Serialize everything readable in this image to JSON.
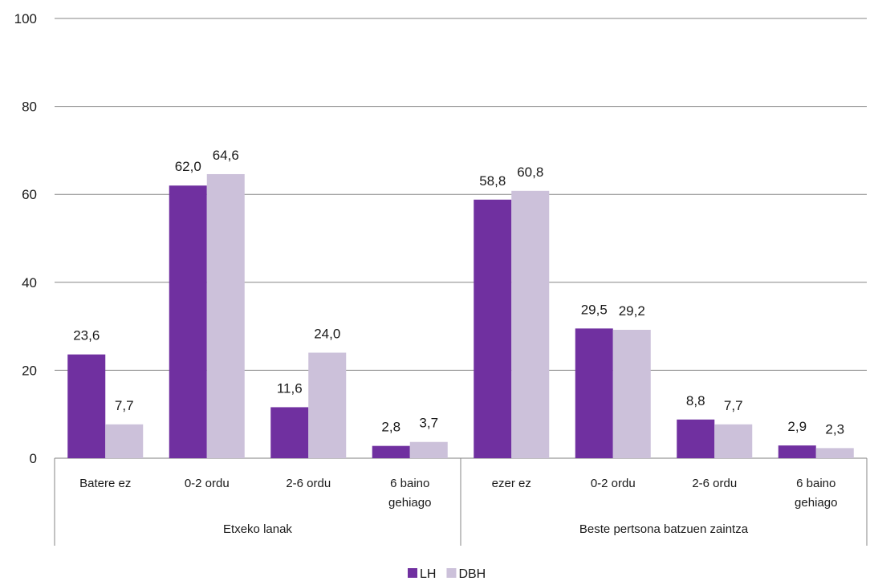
{
  "chart_data": {
    "type": "bar",
    "title": "",
    "xlabel": "",
    "ylabel": "",
    "ylim": [
      0,
      100
    ],
    "yticks": [
      0,
      20,
      40,
      60,
      80,
      100
    ],
    "grid": true,
    "legend_position": "bottom",
    "groups": [
      {
        "label": "Etxeko lanak",
        "categories": [
          "Batere ez",
          "0-2 ordu",
          "2-6 ordu",
          "6  baino gehiago"
        ]
      },
      {
        "label": "Beste pertsona batzuen zaintza",
        "categories": [
          "ezer ez",
          "0-2 ordu",
          "2-6 ordu",
          "6 baino gehiago"
        ]
      }
    ],
    "series": [
      {
        "name": "LH",
        "color": "#7030a0",
        "values": [
          23.6,
          62.0,
          11.6,
          2.8,
          58.8,
          29.5,
          8.8,
          2.9
        ],
        "labels": [
          "23,6",
          "62,0",
          "11,6",
          "2,8",
          "58,8",
          "29,5",
          "8,8",
          "2,9"
        ]
      },
      {
        "name": "DBH",
        "color": "#ccc1da",
        "values": [
          7.7,
          64.6,
          24.0,
          3.7,
          60.8,
          29.2,
          7.7,
          2.3
        ],
        "labels": [
          "7,7",
          "64,6",
          "24,0",
          "3,7",
          "60,8",
          "29,2",
          "7,7",
          "2,3"
        ]
      }
    ]
  }
}
